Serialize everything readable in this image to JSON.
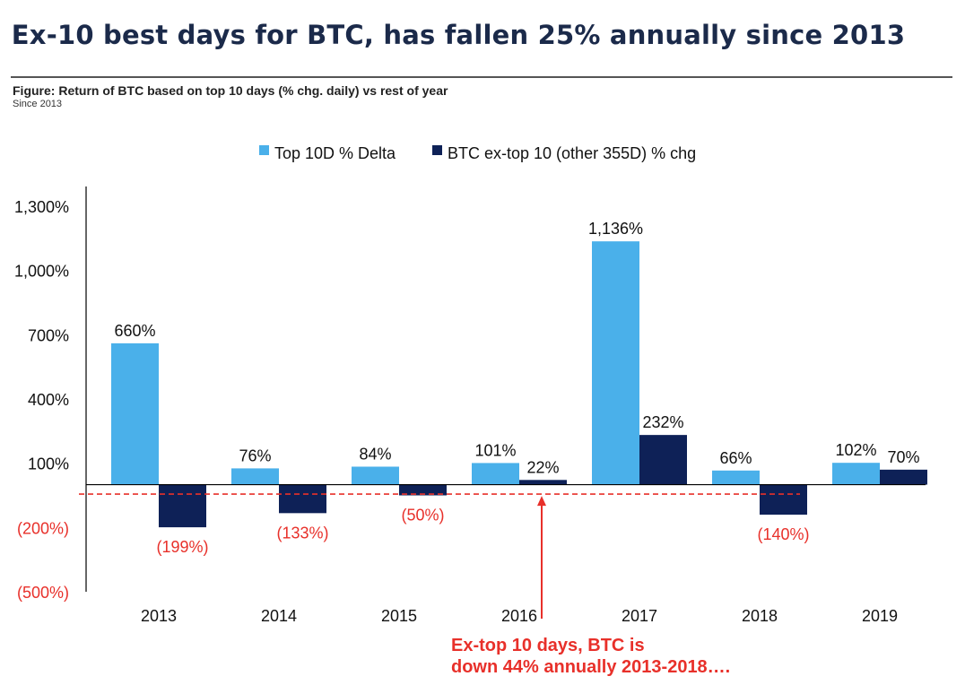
{
  "title": "Ex-10 best days for BTC, has fallen 25% annually since 2013",
  "figure_caption": "Figure: Return of BTC based on top 10 days (% chg. daily) vs rest of year",
  "figure_subcaption": "Since 2013",
  "annotation": {
    "line1": "Ex-top 10 days, BTC is",
    "line2": "down 44% annually 2013-2018…."
  },
  "colors": {
    "top10": "#4ab0ea",
    "ex_top10": "#0e2157",
    "negative_label": "#e8302a",
    "reference_line": "#e8302a"
  },
  "chart_data": {
    "type": "bar",
    "categories": [
      "2013",
      "2014",
      "2015",
      "2016",
      "2017",
      "2018",
      "2019"
    ],
    "series": [
      {
        "name": "Top 10D % Delta",
        "values": [
          660,
          76,
          84,
          101,
          1136,
          66,
          102
        ],
        "labels": [
          "660%",
          "76%",
          "84%",
          "101%",
          "1,136%",
          "66%",
          "102%"
        ]
      },
      {
        "name": "BTC ex-top 10 (other 355D) % chg",
        "values": [
          -199,
          -133,
          -50,
          22,
          232,
          -140,
          70
        ],
        "labels": [
          "(199%)",
          "(133%)",
          "(50%)",
          "22%",
          "232%",
          "(140%)",
          "70%"
        ]
      }
    ],
    "ylim": [
      -500,
      1300
    ],
    "yticks": [
      1300,
      1000,
      700,
      400,
      100,
      -200,
      -500
    ],
    "ytick_labels": [
      "1,300%",
      "1,000%",
      "700%",
      "400%",
      "100%",
      "(200%)",
      "(500%)"
    ],
    "reference_line_value": -44,
    "legend_position": "top-center",
    "grid": false
  }
}
